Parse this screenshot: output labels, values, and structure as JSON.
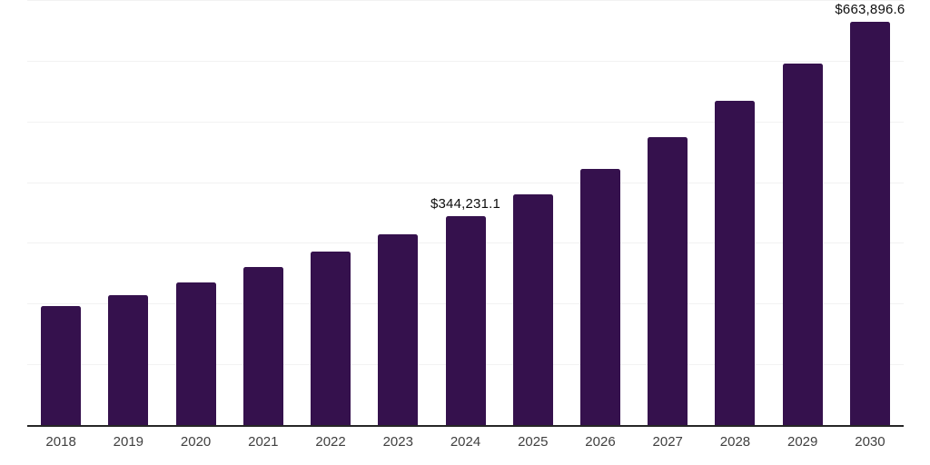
{
  "chart_data": {
    "type": "bar",
    "categories": [
      "2018",
      "2019",
      "2020",
      "2021",
      "2022",
      "2023",
      "2024",
      "2025",
      "2026",
      "2027",
      "2028",
      "2029",
      "2030"
    ],
    "values": [
      196300,
      214500,
      235400,
      260900,
      286100,
      313400,
      344231.1,
      380600,
      421500,
      474000,
      533300,
      595300,
      663896.6
    ],
    "bar_value_labels": [
      "",
      "",
      "",
      "",
      "",
      "",
      "$344,231.1",
      "",
      "",
      "",
      "",
      "",
      "$663,896.6"
    ],
    "ylim": [
      0,
      700000
    ],
    "gridline_step": 100000,
    "grid": "horizontal",
    "legend": "none",
    "colors": {
      "bar": "#35114d",
      "gridline": "#f2f2f2",
      "axis_line": "#262626",
      "tick_label": "#404040",
      "data_label": "#0d0d0d",
      "background": "#ffffff"
    }
  }
}
